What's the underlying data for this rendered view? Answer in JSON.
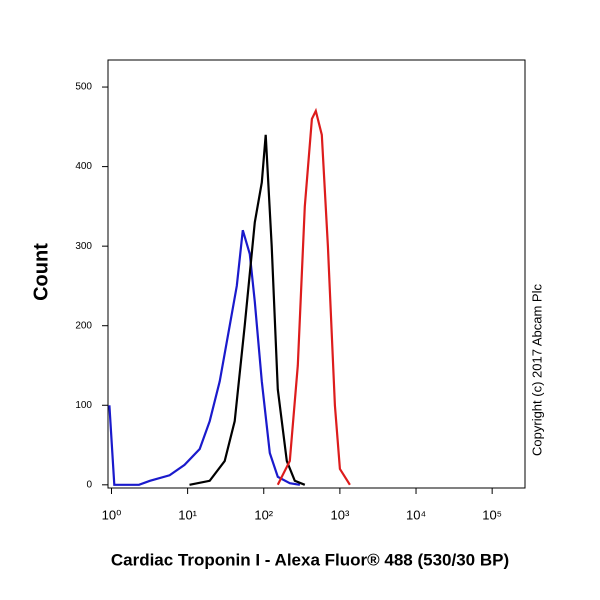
{
  "chart_data": {
    "type": "line",
    "y_label": "Count",
    "x_label": "Cardiac Troponin I - Alexa Fluor® 488 (530/30 BP)",
    "annotation": "Copyright (c) 2017 Abcam Plc",
    "x_scale": "log",
    "xlim": [
      0.9,
      270000
    ],
    "xticks": [
      {
        "value": 1,
        "label": "10⁰"
      },
      {
        "value": 10,
        "label": "10¹"
      },
      {
        "value": 100,
        "label": "10²"
      },
      {
        "value": 1000,
        "label": "10³"
      },
      {
        "value": 10000,
        "label": "10⁴"
      },
      {
        "value": 100000,
        "label": "10⁵"
      }
    ],
    "ylim": [
      -4,
      534
    ],
    "yticks": [
      0,
      100,
      200,
      300,
      400,
      500
    ],
    "series": [
      {
        "color": "#1a1acc",
        "x": [
          0.94,
          1.09,
          2.3,
          3.2,
          5.8,
          9.1,
          14.4,
          19.5,
          26.4,
          35.7,
          44.2,
          53,
          65.5,
          76.2,
          94.2,
          120,
          153,
          220,
          298
        ],
        "values": [
          100,
          0,
          0,
          5,
          12,
          25,
          45,
          80,
          130,
          200,
          250,
          320,
          290,
          230,
          130,
          40,
          10,
          2,
          0
        ]
      },
      {
        "color": "#000000",
        "x": [
          10.6,
          19.5,
          30.7,
          41.5,
          56.2,
          76.2,
          94.2,
          106,
          127,
          153,
          201,
          256,
          346
        ],
        "values": [
          0,
          5,
          30,
          80,
          200,
          330,
          380,
          440,
          300,
          120,
          30,
          5,
          0
        ]
      },
      {
        "color": "#dd1c1c",
        "x": [
          153,
          220,
          280,
          346,
          429,
          483,
          579,
          695,
          859,
          1000,
          1355
        ],
        "values": [
          0,
          30,
          150,
          350,
          460,
          470,
          440,
          300,
          100,
          20,
          0
        ]
      }
    ]
  }
}
